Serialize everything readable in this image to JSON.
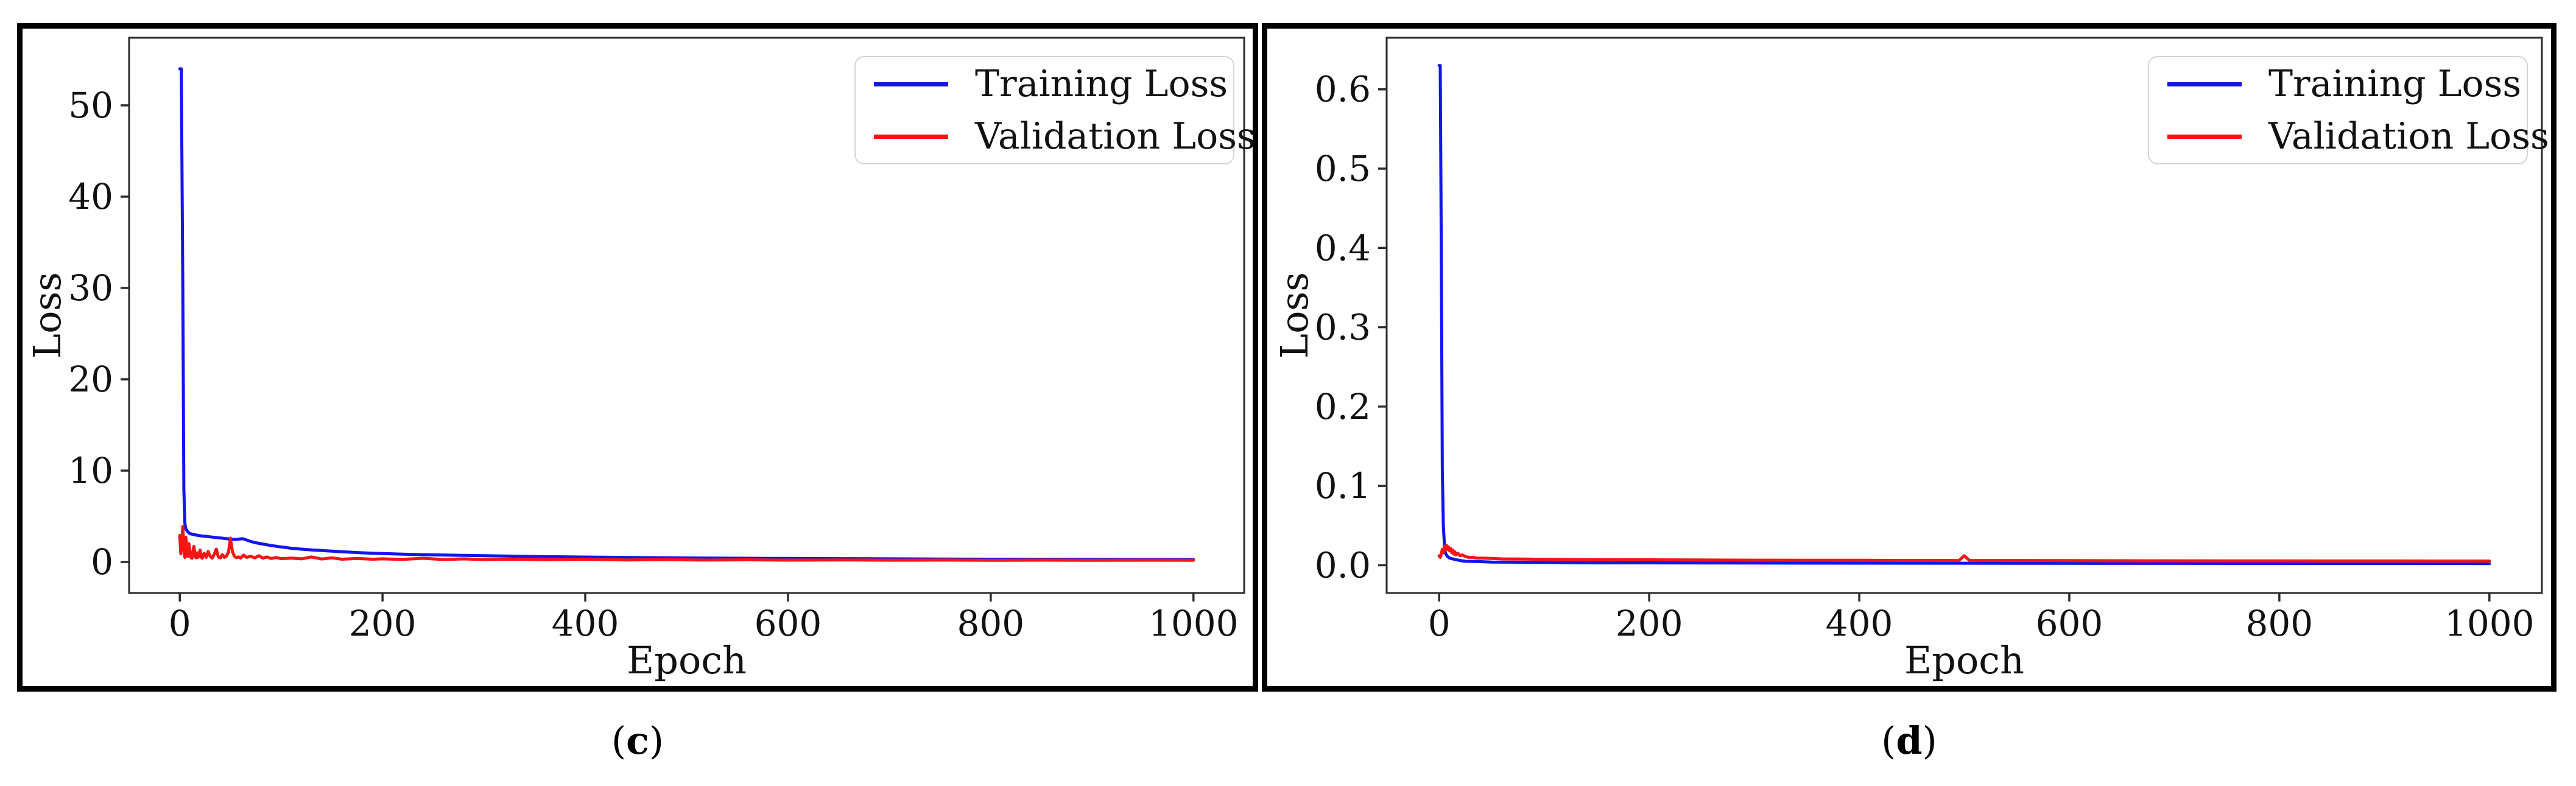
{
  "figure": {
    "background": "#ffffff",
    "panels": [
      {
        "id": "c",
        "caption": {
          "open": "(",
          "letter": "c",
          "close": ")",
          "full": "(c)"
        }
      },
      {
        "id": "d",
        "caption": {
          "open": "(",
          "letter": "d",
          "close": ")",
          "full": "(d)"
        }
      }
    ],
    "colors": {
      "training_loss": "#1414ee",
      "validation_loss": "#f71414",
      "axis": "#2b2b2b",
      "text": "#111111",
      "legend_border": "#d4d4d4",
      "panel_border": "#000000"
    }
  },
  "chart_data": [
    {
      "type": "line",
      "title": "",
      "xlabel": "Epoch",
      "ylabel": "Loss",
      "grid": false,
      "legend_position": "upper right",
      "xlim": [
        -50,
        1050
      ],
      "ylim": [
        -3.4,
        57.4
      ],
      "xticks": {
        "values": [
          0,
          200,
          400,
          600,
          800,
          1000
        ],
        "labels": [
          "0",
          "200",
          "400",
          "600",
          "800",
          "1000"
        ]
      },
      "yticks": {
        "values": [
          0,
          10,
          20,
          30,
          40,
          50
        ],
        "labels": [
          "0",
          "10",
          "20",
          "30",
          "40",
          "50"
        ]
      },
      "series": [
        {
          "name": "Training Loss",
          "color": "#1414ee",
          "points": [
            [
              0,
              54
            ],
            [
              1.5,
              54
            ],
            [
              3,
              30
            ],
            [
              4,
              8
            ],
            [
              5,
              4.2
            ],
            [
              6,
              3.6
            ],
            [
              8,
              3.3
            ],
            [
              10,
              3.1
            ],
            [
              14,
              3.0
            ],
            [
              18,
              2.9
            ],
            [
              22,
              2.85
            ],
            [
              26,
              2.8
            ],
            [
              30,
              2.75
            ],
            [
              34,
              2.7
            ],
            [
              38,
              2.65
            ],
            [
              42,
              2.6
            ],
            [
              46,
              2.55
            ],
            [
              50,
              2.5
            ],
            [
              54,
              2.45
            ],
            [
              58,
              2.5
            ],
            [
              62,
              2.55
            ],
            [
              66,
              2.4
            ],
            [
              70,
              2.25
            ],
            [
              75,
              2.1
            ],
            [
              80,
              2.0
            ],
            [
              85,
              1.9
            ],
            [
              90,
              1.8
            ],
            [
              95,
              1.72
            ],
            [
              100,
              1.65
            ],
            [
              110,
              1.5
            ],
            [
              120,
              1.4
            ],
            [
              130,
              1.32
            ],
            [
              140,
              1.25
            ],
            [
              150,
              1.18
            ],
            [
              160,
              1.12
            ],
            [
              170,
              1.06
            ],
            [
              180,
              1.0
            ],
            [
              190,
              0.96
            ],
            [
              200,
              0.92
            ],
            [
              220,
              0.85
            ],
            [
              240,
              0.8
            ],
            [
              260,
              0.76
            ],
            [
              280,
              0.72
            ],
            [
              300,
              0.68
            ],
            [
              330,
              0.63
            ],
            [
              360,
              0.58
            ],
            [
              400,
              0.53
            ],
            [
              450,
              0.48
            ],
            [
              500,
              0.44
            ],
            [
              550,
              0.41
            ],
            [
              600,
              0.38
            ],
            [
              650,
              0.36
            ],
            [
              700,
              0.34
            ],
            [
              750,
              0.32
            ],
            [
              800,
              0.3
            ],
            [
              850,
              0.29
            ],
            [
              900,
              0.28
            ],
            [
              950,
              0.27
            ],
            [
              1000,
              0.26
            ]
          ]
        },
        {
          "name": "Validation Loss",
          "color": "#f71414",
          "points": [
            [
              0,
              2.9
            ],
            [
              1,
              0.9
            ],
            [
              2,
              2.3
            ],
            [
              3,
              3.9
            ],
            [
              4,
              1.4
            ],
            [
              5,
              0.5
            ],
            [
              6,
              2.7
            ],
            [
              7,
              1.6
            ],
            [
              8,
              0.6
            ],
            [
              9,
              2.0
            ],
            [
              10,
              1.1
            ],
            [
              11,
              0.5
            ],
            [
              12,
              0.4
            ],
            [
              13,
              1.2
            ],
            [
              14,
              1.7
            ],
            [
              15,
              0.7
            ],
            [
              16,
              0.45
            ],
            [
              17,
              1.0
            ],
            [
              18,
              0.5
            ],
            [
              19,
              0.8
            ],
            [
              20,
              1.3
            ],
            [
              21,
              0.55
            ],
            [
              22,
              0.4
            ],
            [
              24,
              0.95
            ],
            [
              26,
              0.5
            ],
            [
              28,
              1.15
            ],
            [
              30,
              0.6
            ],
            [
              32,
              0.42
            ],
            [
              34,
              0.85
            ],
            [
              36,
              1.4
            ],
            [
              38,
              0.55
            ],
            [
              40,
              0.45
            ],
            [
              42,
              0.8
            ],
            [
              44,
              0.5
            ],
            [
              46,
              0.65
            ],
            [
              48,
              1.05
            ],
            [
              50,
              2.6
            ],
            [
              51,
              1.8
            ],
            [
              52,
              1.1
            ],
            [
              54,
              0.6
            ],
            [
              56,
              0.48
            ],
            [
              58,
              0.55
            ],
            [
              60,
              0.42
            ],
            [
              63,
              0.75
            ],
            [
              66,
              0.5
            ],
            [
              70,
              0.62
            ],
            [
              74,
              0.45
            ],
            [
              78,
              0.68
            ],
            [
              82,
              0.42
            ],
            [
              86,
              0.55
            ],
            [
              90,
              0.38
            ],
            [
              95,
              0.48
            ],
            [
              100,
              0.36
            ],
            [
              110,
              0.42
            ],
            [
              120,
              0.34
            ],
            [
              130,
              0.55
            ],
            [
              140,
              0.32
            ],
            [
              150,
              0.45
            ],
            [
              160,
              0.3
            ],
            [
              175,
              0.38
            ],
            [
              190,
              0.3
            ],
            [
              200,
              0.34
            ],
            [
              220,
              0.28
            ],
            [
              240,
              0.4
            ],
            [
              260,
              0.27
            ],
            [
              280,
              0.33
            ],
            [
              300,
              0.26
            ],
            [
              330,
              0.3
            ],
            [
              360,
              0.24
            ],
            [
              400,
              0.28
            ],
            [
              440,
              0.22
            ],
            [
              480,
              0.25
            ],
            [
              520,
              0.21
            ],
            [
              560,
              0.23
            ],
            [
              600,
              0.2
            ],
            [
              650,
              0.22
            ],
            [
              700,
              0.19
            ],
            [
              750,
              0.21
            ],
            [
              800,
              0.18
            ],
            [
              850,
              0.2
            ],
            [
              900,
              0.18
            ],
            [
              950,
              0.19
            ],
            [
              1000,
              0.18
            ]
          ]
        }
      ]
    },
    {
      "type": "line",
      "title": "",
      "xlabel": "Epoch",
      "ylabel": "Loss",
      "grid": false,
      "legend_position": "upper right",
      "xlim": [
        -50,
        1050
      ],
      "ylim": [
        -0.035,
        0.665
      ],
      "xticks": {
        "values": [
          0,
          200,
          400,
          600,
          800,
          1000
        ],
        "labels": [
          "0",
          "200",
          "400",
          "600",
          "800",
          "1000"
        ]
      },
      "yticks": {
        "values": [
          0.0,
          0.1,
          0.2,
          0.3,
          0.4,
          0.5,
          0.6
        ],
        "labels": [
          "0.0",
          "0.1",
          "0.2",
          "0.3",
          "0.4",
          "0.5",
          "0.6"
        ]
      },
      "series": [
        {
          "name": "Training Loss",
          "color": "#1414ee",
          "points": [
            [
              0,
              0.63
            ],
            [
              1,
              0.63
            ],
            [
              2,
              0.4
            ],
            [
              3,
              0.12
            ],
            [
              4,
              0.05
            ],
            [
              5,
              0.025
            ],
            [
              6,
              0.015
            ],
            [
              8,
              0.011
            ],
            [
              10,
              0.009
            ],
            [
              13,
              0.008
            ],
            [
              16,
              0.007
            ],
            [
              20,
              0.006
            ],
            [
              25,
              0.005
            ],
            [
              30,
              0.0048
            ],
            [
              40,
              0.0045
            ],
            [
              50,
              0.004
            ],
            [
              70,
              0.0038
            ],
            [
              100,
              0.0035
            ],
            [
              150,
              0.003
            ],
            [
              200,
              0.003
            ],
            [
              300,
              0.0028
            ],
            [
              400,
              0.0026
            ],
            [
              500,
              0.0025
            ],
            [
              600,
              0.0024
            ],
            [
              700,
              0.0023
            ],
            [
              800,
              0.0022
            ],
            [
              900,
              0.0022
            ],
            [
              1000,
              0.0021
            ]
          ]
        },
        {
          "name": "Validation Loss",
          "color": "#f71414",
          "points": [
            [
              0,
              0.012
            ],
            [
              1,
              0.01
            ],
            [
              2,
              0.014
            ],
            [
              3,
              0.02
            ],
            [
              4,
              0.016
            ],
            [
              5,
              0.024
            ],
            [
              6,
              0.019
            ],
            [
              7,
              0.025
            ],
            [
              8,
              0.02
            ],
            [
              9,
              0.023
            ],
            [
              10,
              0.018
            ],
            [
              11,
              0.021
            ],
            [
              12,
              0.016
            ],
            [
              13,
              0.019
            ],
            [
              14,
              0.014
            ],
            [
              15,
              0.017
            ],
            [
              16,
              0.013
            ],
            [
              18,
              0.015
            ],
            [
              20,
              0.012
            ],
            [
              22,
              0.013
            ],
            [
              25,
              0.011
            ],
            [
              28,
              0.01
            ],
            [
              32,
              0.01
            ],
            [
              36,
              0.009
            ],
            [
              40,
              0.009
            ],
            [
              50,
              0.0085
            ],
            [
              60,
              0.008
            ],
            [
              80,
              0.0078
            ],
            [
              100,
              0.0075
            ],
            [
              150,
              0.007
            ],
            [
              200,
              0.0068
            ],
            [
              250,
              0.0066
            ],
            [
              300,
              0.0064
            ],
            [
              350,
              0.0063
            ],
            [
              400,
              0.0062
            ],
            [
              450,
              0.0061
            ],
            [
              495,
              0.006
            ],
            [
              500,
              0.012
            ],
            [
              505,
              0.006
            ],
            [
              550,
              0.006
            ],
            [
              600,
              0.0058
            ],
            [
              650,
              0.0057
            ],
            [
              700,
              0.0056
            ],
            [
              750,
              0.0055
            ],
            [
              800,
              0.0055
            ],
            [
              850,
              0.0054
            ],
            [
              900,
              0.0054
            ],
            [
              950,
              0.0053
            ],
            [
              1000,
              0.0053
            ]
          ]
        }
      ]
    }
  ]
}
